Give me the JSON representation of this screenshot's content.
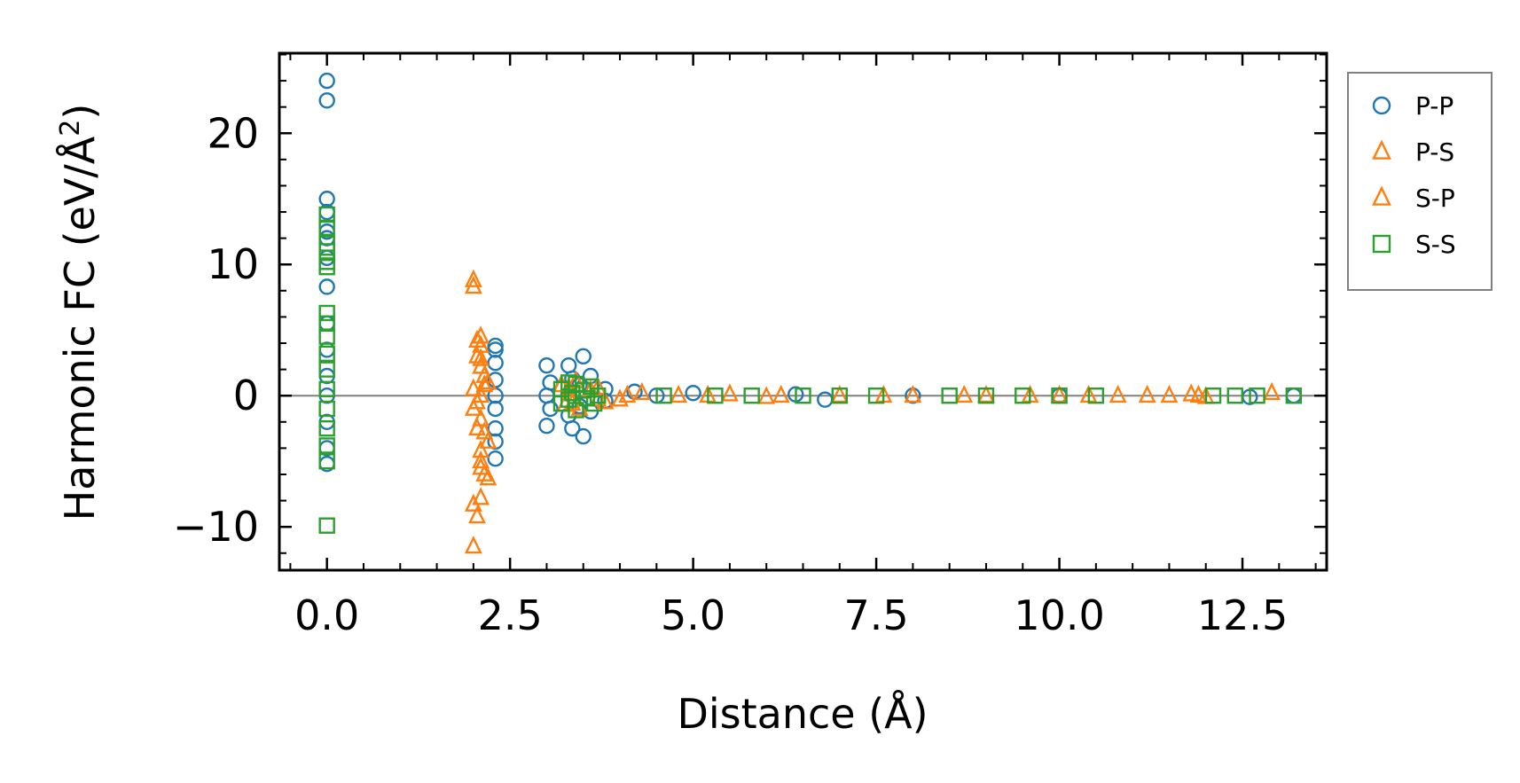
{
  "chart_data": {
    "type": "scatter",
    "title": "",
    "xlabel": "Distance (Å)",
    "ylabel": "Harmonic FC (eV/Å²)",
    "ylabel_parts": {
      "prefix": "Harmonic FC (eV/Å",
      "superscript": "2",
      "suffix": ")"
    },
    "xlim": [
      -0.65,
      13.65
    ],
    "ylim": [
      -13.3,
      26.1
    ],
    "xticks": [
      0.0,
      2.5,
      5.0,
      7.5,
      10.0,
      12.5
    ],
    "xtick_labels": [
      "0.0",
      "2.5",
      "5.0",
      "7.5",
      "10.0",
      "12.5"
    ],
    "yticks": [
      -10,
      0,
      10,
      20
    ],
    "ytick_labels": [
      "−10",
      "0",
      "10",
      "20"
    ],
    "x_minor_step": 0.5,
    "y_minor_step": 2,
    "zero_line": true,
    "grid": false,
    "legend_position": "outside-top-right",
    "colors": {
      "pp": "#1f77b4",
      "ps": "#ff7f0e",
      "sp": "#ff7f0e",
      "ss": "#2ca02c",
      "zero_line": "#808080",
      "axes": "#000000"
    },
    "series": [
      {
        "name": "P-P",
        "marker": "circle",
        "color": "#1f77b4",
        "points": [
          [
            0.0,
            24.0
          ],
          [
            0.0,
            22.5
          ],
          [
            0.0,
            15.0
          ],
          [
            0.0,
            14.0
          ],
          [
            0.0,
            12.5
          ],
          [
            0.0,
            12.0
          ],
          [
            0.0,
            10.5
          ],
          [
            0.0,
            8.3
          ],
          [
            0.0,
            5.5
          ],
          [
            0.0,
            3.5
          ],
          [
            0.0,
            1.5
          ],
          [
            0.0,
            0.0
          ],
          [
            0.0,
            -2.0
          ],
          [
            0.0,
            -4.0
          ],
          [
            0.0,
            -5.2
          ],
          [
            2.3,
            3.8
          ],
          [
            2.3,
            3.5
          ],
          [
            2.3,
            2.5
          ],
          [
            2.3,
            1.2
          ],
          [
            2.3,
            0.0
          ],
          [
            2.3,
            -1.0
          ],
          [
            2.3,
            -2.5
          ],
          [
            2.3,
            -3.5
          ],
          [
            2.3,
            -4.8
          ],
          [
            3.0,
            2.3
          ],
          [
            3.05,
            1.0
          ],
          [
            3.0,
            0.0
          ],
          [
            3.05,
            -1.0
          ],
          [
            3.0,
            -2.3
          ],
          [
            3.3,
            2.3
          ],
          [
            3.35,
            1.3
          ],
          [
            3.3,
            -1.5
          ],
          [
            3.35,
            -2.5
          ],
          [
            3.5,
            3.0
          ],
          [
            3.5,
            -3.1
          ],
          [
            3.45,
            0.8
          ],
          [
            3.45,
            -0.8
          ],
          [
            3.6,
            1.5
          ],
          [
            3.6,
            -1.2
          ],
          [
            3.8,
            0.5
          ],
          [
            3.8,
            -0.4
          ],
          [
            4.2,
            0.3
          ],
          [
            4.5,
            0.0
          ],
          [
            5.0,
            0.2
          ],
          [
            6.4,
            0.1
          ],
          [
            6.8,
            -0.3
          ],
          [
            8.0,
            0.0
          ],
          [
            10.0,
            0.0
          ],
          [
            12.6,
            -0.1
          ],
          [
            13.2,
            0.0
          ]
        ]
      },
      {
        "name": "P-S",
        "marker": "triangle",
        "color": "#ff7f0e",
        "points": [
          [
            2.0,
            8.8
          ],
          [
            2.0,
            8.3
          ],
          [
            2.1,
            4.5
          ],
          [
            2.1,
            3.8
          ],
          [
            2.05,
            3.0
          ],
          [
            2.1,
            2.2
          ],
          [
            2.15,
            1.5
          ],
          [
            2.2,
            1.0
          ],
          [
            2.0,
            0.5
          ],
          [
            2.1,
            0.0
          ],
          [
            2.0,
            -1.0
          ],
          [
            2.1,
            -1.8
          ],
          [
            2.05,
            -2.5
          ],
          [
            2.2,
            -3.5
          ],
          [
            2.1,
            -4.2
          ],
          [
            2.1,
            -5.0
          ],
          [
            2.15,
            -6.0
          ],
          [
            2.2,
            -6.3
          ],
          [
            2.0,
            -8.3
          ],
          [
            2.05,
            -9.2
          ],
          [
            2.1,
            -7.8
          ],
          [
            2.0,
            -11.5
          ],
          [
            3.2,
            0.8
          ],
          [
            3.25,
            -0.7
          ],
          [
            3.4,
            1.1
          ],
          [
            3.45,
            -1.0
          ],
          [
            3.7,
            0.6
          ],
          [
            3.8,
            -0.5
          ],
          [
            4.0,
            -0.3
          ],
          [
            4.3,
            0.2
          ],
          [
            4.8,
            0.0
          ],
          [
            5.5,
            0.1
          ],
          [
            6.0,
            -0.1
          ],
          [
            7.0,
            0.0
          ],
          [
            8.0,
            0.0
          ],
          [
            9.0,
            0.0
          ],
          [
            10.0,
            0.0
          ],
          [
            10.8,
            0.0
          ],
          [
            11.5,
            0.0
          ],
          [
            11.8,
            0.1
          ],
          [
            12.0,
            -0.1
          ],
          [
            12.9,
            0.2
          ]
        ]
      },
      {
        "name": "S-P",
        "marker": "triangle",
        "color": "#ff7f0e",
        "points": [
          [
            2.05,
            4.2
          ],
          [
            2.1,
            2.8
          ],
          [
            2.15,
            0.8
          ],
          [
            2.05,
            -0.5
          ],
          [
            2.15,
            -2.8
          ],
          [
            2.1,
            -5.5
          ],
          [
            3.3,
            0.6
          ],
          [
            3.35,
            -0.6
          ],
          [
            3.6,
            0.4
          ],
          [
            3.7,
            -0.3
          ],
          [
            4.1,
            0.0
          ],
          [
            5.2,
            0.0
          ],
          [
            6.2,
            0.0
          ],
          [
            7.6,
            0.0
          ],
          [
            8.7,
            0.0
          ],
          [
            9.6,
            0.0
          ],
          [
            10.4,
            0.0
          ],
          [
            11.2,
            0.0
          ],
          [
            11.9,
            0.0
          ]
        ]
      },
      {
        "name": "S-S",
        "marker": "square",
        "color": "#2ca02c",
        "points": [
          [
            0.0,
            13.8
          ],
          [
            0.0,
            12.8
          ],
          [
            0.0,
            11.6
          ],
          [
            0.0,
            11.0
          ],
          [
            0.0,
            10.2
          ],
          [
            0.0,
            9.8
          ],
          [
            0.0,
            6.3
          ],
          [
            0.0,
            5.5
          ],
          [
            0.0,
            4.5
          ],
          [
            0.0,
            3.2
          ],
          [
            0.0,
            2.0
          ],
          [
            0.0,
            0.5
          ],
          [
            0.0,
            -1.0
          ],
          [
            0.0,
            -2.5
          ],
          [
            0.0,
            -3.8
          ],
          [
            0.0,
            -5.0
          ],
          [
            0.0,
            -9.9
          ],
          [
            3.2,
            0.5
          ],
          [
            3.2,
            -0.6
          ],
          [
            3.3,
            1.0
          ],
          [
            3.35,
            0.2
          ],
          [
            3.3,
            -0.3
          ],
          [
            3.4,
            0.9
          ],
          [
            3.4,
            -1.1
          ],
          [
            3.5,
            0.4
          ],
          [
            3.55,
            -0.2
          ],
          [
            3.6,
            0.7
          ],
          [
            3.65,
            -0.6
          ],
          [
            3.7,
            0.0
          ],
          [
            4.6,
            0.0
          ],
          [
            5.3,
            0.0
          ],
          [
            5.8,
            0.0
          ],
          [
            6.5,
            0.0
          ],
          [
            7.0,
            0.0
          ],
          [
            7.5,
            0.0
          ],
          [
            8.5,
            0.0
          ],
          [
            9.0,
            0.0
          ],
          [
            9.5,
            0.0
          ],
          [
            10.0,
            0.0
          ],
          [
            10.5,
            0.0
          ],
          [
            12.1,
            0.0
          ],
          [
            12.4,
            0.0
          ],
          [
            12.7,
            0.0
          ],
          [
            13.2,
            0.0
          ]
        ]
      }
    ]
  }
}
